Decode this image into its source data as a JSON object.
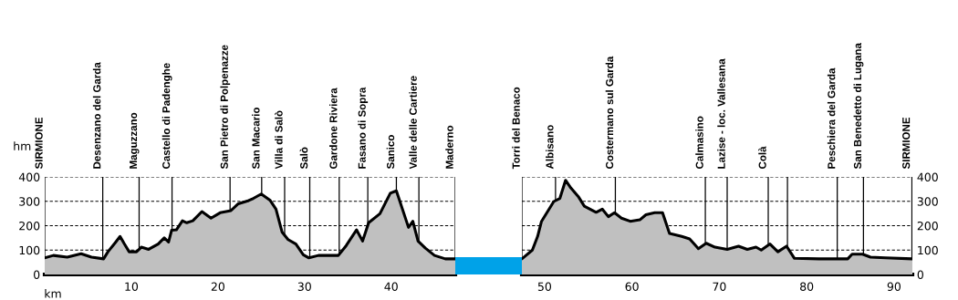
{
  "chart_data": [
    {
      "type": "area",
      "xlabel": "km",
      "ylabel": "hm",
      "xlim": [
        0,
        47.4
      ],
      "xticks": [
        10,
        20,
        30,
        40
      ],
      "ylim": [
        0,
        400
      ],
      "yticks": [
        0,
        100,
        200,
        300,
        400
      ],
      "grid": "y",
      "series": [
        {
          "color": "#c0c0c0",
          "x": [
            0,
            1.0,
            2.6,
            4.2,
            5.4,
            6.8,
            7.3,
            8.2,
            8.7,
            9.2,
            9.75,
            10.6,
            11.15,
            12.0,
            13.1,
            13.8,
            14.3,
            14.65,
            15.2,
            15.9,
            16.4,
            17.1,
            18.15,
            19.2,
            20.25,
            21.5,
            22.35,
            23.55,
            24.1,
            25.0,
            26.0,
            26.7,
            27.4,
            28.1,
            29.0,
            29.85,
            30.5,
            31.6,
            33.9,
            34.8,
            36.0,
            36.7,
            37.4,
            38.7,
            39.9,
            40.6,
            42.0,
            42.5,
            43.1,
            43.95,
            45.0,
            46.25,
            47.4
          ],
          "values": [
            68,
            78,
            71,
            85,
            71,
            64,
            93,
            133,
            156,
            125,
            93,
            93,
            112,
            103,
            125,
            150,
            133,
            181,
            183,
            220,
            212,
            220,
            258,
            231,
            253,
            262,
            290,
            303,
            312,
            330,
            305,
            268,
            174,
            143,
            125,
            81,
            68,
            78,
            78,
            118,
            183,
            137,
            212,
            249,
            333,
            343,
            193,
            218,
            137,
            108,
            78,
            64,
            64
          ]
        }
      ],
      "ref_lines": [
        {
          "axis": "x",
          "value": 0,
          "label": "SIRMIONE"
        },
        {
          "axis": "x",
          "value": 6.7,
          "label": "Desenzano del Garda"
        },
        {
          "axis": "x",
          "value": 10.9,
          "label": "Maguzzano"
        },
        {
          "axis": "x",
          "value": 14.7,
          "label": "Castello di Padenghe"
        },
        {
          "axis": "x",
          "value": 21.4,
          "label": "San Pietro di Polpenazze"
        },
        {
          "axis": "x",
          "value": 25.05,
          "label": "San Macario"
        },
        {
          "axis": "x",
          "value": 27.7,
          "label": "Villa di Salò"
        },
        {
          "axis": "x",
          "value": 30.6,
          "label": "Salò"
        },
        {
          "axis": "x",
          "value": 34.0,
          "label": "Gardone Riviera"
        },
        {
          "axis": "x",
          "value": 37.3,
          "label": "Fasano di Sopra"
        },
        {
          "axis": "x",
          "value": 40.6,
          "label": "Sanico"
        },
        {
          "axis": "x",
          "value": 43.2,
          "label": "Valle delle Cartiere"
        },
        {
          "axis": "x",
          "value": 47.4,
          "label": "Maderno"
        }
      ]
    },
    {
      "type": "area",
      "xlim": [
        47.4,
        92.1
      ],
      "xticks": [
        50,
        60,
        70,
        80,
        90
      ],
      "y2lim": [
        0,
        400
      ],
      "y2ticks": [
        0,
        100,
        200,
        300,
        400
      ],
      "grid": "y",
      "series": [
        {
          "color": "#c0c0c0",
          "axis": "y2",
          "x": [
            47.4,
            48.6,
            49.2,
            49.65,
            51.05,
            51.75,
            52.4,
            53.0,
            53.85,
            54.55,
            55.9,
            56.6,
            57.3,
            58.0,
            58.8,
            59.8,
            60.9,
            61.6,
            62.6,
            63.5,
            64.3,
            65.7,
            66.6,
            67.6,
            68.5,
            69.5,
            70.9,
            72.2,
            73.2,
            74.2,
            74.8,
            75.8,
            76.7,
            77.7,
            78.6,
            81.4,
            84.7,
            85.2,
            86.4,
            87.3,
            89.0,
            92.1
          ],
          "values": [
            64,
            100,
            156,
            218,
            299,
            312,
            386,
            355,
            320,
            280,
            255,
            268,
            237,
            253,
            231,
            218,
            224,
            245,
            253,
            253,
            168,
            156,
            146,
            106,
            128,
            112,
            103,
            116,
            103,
            112,
            100,
            125,
            93,
            116,
            66,
            64,
            64,
            83,
            83,
            71,
            68,
            64
          ]
        }
      ],
      "ref_lines": [
        {
          "axis": "x",
          "value": 47.4,
          "label": "Torri del Benaco"
        },
        {
          "axis": "x",
          "value": 51.25,
          "label": "Albisano"
        },
        {
          "axis": "x",
          "value": 58.1,
          "label": "Costermano sul Garda"
        },
        {
          "axis": "x",
          "value": 68.4,
          "label": "Calmasino"
        },
        {
          "axis": "x",
          "value": 70.9,
          "label": "Lazise - loc. Vallesana"
        },
        {
          "axis": "x",
          "value": 75.6,
          "label": "Colà"
        },
        {
          "axis": "x",
          "value": 77.8,
          "label": null
        },
        {
          "axis": "x",
          "value": 83.5,
          "label": "Peschiera del Garda"
        },
        {
          "axis": "x",
          "value": 86.5,
          "label": "San Benedetto di Lugana"
        },
        {
          "axis": "x",
          "value": 92.05,
          "label": "SIRMIONE"
        }
      ]
    }
  ]
}
